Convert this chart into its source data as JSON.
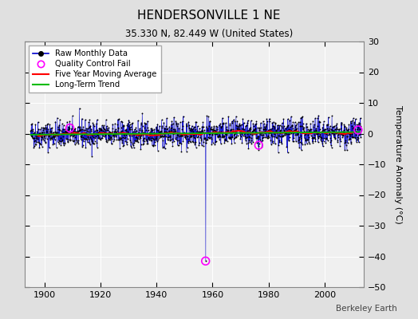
{
  "title": "HENDERSONVILLE 1 NE",
  "subtitle": "35.330 N, 82.449 W (United States)",
  "ylabel": "Temperature Anomaly (°C)",
  "watermark": "Berkeley Earth",
  "xlim": [
    1893,
    2014
  ],
  "ylim": [
    -50,
    30
  ],
  "yticks": [
    -50,
    -40,
    -30,
    -20,
    -10,
    0,
    10,
    20,
    30
  ],
  "xticks": [
    1900,
    1920,
    1940,
    1960,
    1980,
    2000
  ],
  "bg_color": "#e0e0e0",
  "plot_bg_color": "#f0f0f0",
  "grid_color": "#ffffff",
  "raw_color": "#0000cc",
  "raw_dot_color": "#000000",
  "qc_fail_color": "#ff00ff",
  "moving_avg_color": "#ff0000",
  "trend_color": "#00bb00",
  "seed": 42,
  "n_years_start": 1895,
  "n_years_end": 2013,
  "noise_scale": 2.2,
  "outlier_year": 1957.5,
  "outlier_value": -41.5,
  "qc_years": [
    1909.0,
    1957.5,
    1976.5,
    2012.0
  ],
  "qc_values": [
    1.8,
    -41.5,
    -3.8,
    1.2
  ]
}
